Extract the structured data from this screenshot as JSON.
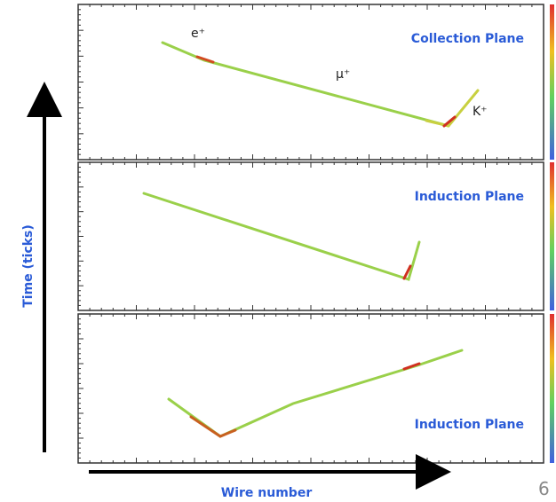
{
  "panels": [
    {
      "title": "Collection Plane",
      "labels": [
        "e⁺",
        "μ⁺",
        "K⁺"
      ]
    },
    {
      "title": "Induction Plane"
    },
    {
      "title": "Induction Plane"
    }
  ],
  "y_axis_label": "Time (ticks)",
  "x_axis_label": "Wire number",
  "page_number": "6"
}
